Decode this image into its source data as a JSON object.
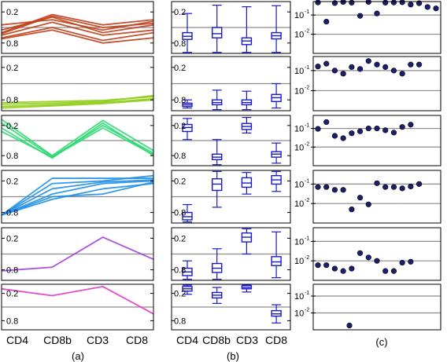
{
  "figure": {
    "x_categories": [
      "CD4",
      "CD8b",
      "CD3",
      "CD8"
    ],
    "panel_labels": [
      "(a)",
      "(b)",
      "(c)"
    ],
    "linear_ticks": [
      "0.8",
      "0.2"
    ],
    "log_ticks": [
      "10",
      "-1",
      "10",
      "-2"
    ]
  },
  "chart_data": [
    {
      "panel": "(a)",
      "type": "line",
      "categories": [
        "CD4",
        "CD8b",
        "CD3",
        "CD8"
      ],
      "ylim": [
        0,
        1
      ],
      "yticks": [
        0.2,
        0.8
      ],
      "reference_line": 0.5,
      "rows": [
        {
          "color": "#c0401c",
          "series": [
            {
              "values": [
                0.45,
                0.7,
                0.4,
                0.55
              ]
            },
            {
              "values": [
                0.4,
                0.75,
                0.55,
                0.65
              ]
            },
            {
              "values": [
                0.35,
                0.6,
                0.35,
                0.45
              ]
            },
            {
              "values": [
                0.3,
                0.5,
                0.25,
                0.4
              ]
            },
            {
              "values": [
                0.55,
                0.65,
                0.45,
                0.62
              ]
            },
            {
              "values": [
                0.28,
                0.45,
                0.2,
                0.3
              ]
            },
            {
              "values": [
                0.38,
                0.72,
                0.5,
                0.58
              ]
            }
          ]
        },
        {
          "color": "#8fcc16",
          "series": [
            {
              "values": [
                0.12,
                0.14,
                0.17,
                0.28
              ]
            },
            {
              "values": [
                0.08,
                0.11,
                0.15,
                0.22
              ]
            },
            {
              "values": [
                0.15,
                0.17,
                0.19,
                0.26
              ]
            },
            {
              "values": [
                0.05,
                0.09,
                0.13,
                0.2
              ]
            }
          ]
        },
        {
          "color": "#2fd872",
          "series": [
            {
              "values": [
                0.85,
                0.18,
                0.8,
                0.25
              ]
            },
            {
              "values": [
                0.75,
                0.15,
                0.85,
                0.2
              ]
            },
            {
              "values": [
                0.68,
                0.17,
                0.75,
                0.22
              ]
            },
            {
              "values": [
                0.92,
                0.2,
                0.9,
                0.3
              ]
            }
          ]
        },
        {
          "color": "#1f8fe8",
          "series": [
            {
              "values": [
                0.15,
                0.85,
                0.85,
                0.85
              ]
            },
            {
              "values": [
                0.15,
                0.75,
                0.8,
                0.9
              ]
            },
            {
              "values": [
                0.15,
                0.65,
                0.78,
                0.82
              ]
            },
            {
              "values": [
                0.15,
                0.55,
                0.75,
                0.8
              ]
            },
            {
              "values": [
                0.15,
                0.5,
                0.55,
                0.78
              ]
            },
            {
              "values": [
                0.15,
                0.45,
                0.65,
                0.75
              ]
            }
          ]
        },
        {
          "color": "#a23fd8",
          "series": [
            {
              "values": [
                0.18,
                0.25,
                0.82,
                0.4
              ]
            }
          ]
        },
        {
          "color": "#e436c4",
          "series": [
            {
              "values": [
                0.9,
                0.75,
                0.95,
                0.35
              ]
            }
          ]
        }
      ]
    },
    {
      "panel": "(b)",
      "type": "box",
      "categories": [
        "CD4",
        "CD8b",
        "CD3",
        "CD8"
      ],
      "ylim": [
        0,
        1
      ],
      "yticks": [
        0.2,
        0.8
      ],
      "reference_line": 0.5,
      "color": "#1a1acc",
      "rows": [
        {
          "boxes": [
            {
              "min": 0.02,
              "q1": 0.27,
              "median": 0.33,
              "q3": 0.4,
              "max": 0.77
            },
            {
              "min": 0.02,
              "q1": 0.3,
              "median": 0.38,
              "q3": 0.5,
              "max": 0.93
            },
            {
              "min": 0.02,
              "q1": 0.17,
              "median": 0.24,
              "q3": 0.3,
              "max": 0.9
            },
            {
              "min": 0.02,
              "q1": 0.28,
              "median": 0.34,
              "q3": 0.4,
              "max": 0.92
            }
          ]
        },
        {
          "boxes": [
            {
              "min": 0.05,
              "q1": 0.08,
              "median": 0.11,
              "q3": 0.14,
              "max": 0.2
            },
            {
              "min": 0.02,
              "q1": 0.11,
              "median": 0.15,
              "q3": 0.2,
              "max": 0.38
            },
            {
              "min": 0.02,
              "q1": 0.11,
              "median": 0.15,
              "q3": 0.2,
              "max": 0.36
            },
            {
              "min": 0.05,
              "q1": 0.17,
              "median": 0.24,
              "q3": 0.3,
              "max": 0.5
            }
          ]
        },
        {
          "boxes": [
            {
              "min": 0.52,
              "q1": 0.68,
              "median": 0.76,
              "q3": 0.82,
              "max": 0.94
            },
            {
              "min": 0.02,
              "q1": 0.12,
              "median": 0.17,
              "q3": 0.23,
              "max": 0.52
            },
            {
              "min": 0.65,
              "q1": 0.72,
              "median": 0.78,
              "q3": 0.84,
              "max": 0.96
            },
            {
              "min": 0.05,
              "q1": 0.17,
              "median": 0.23,
              "q3": 0.28,
              "max": 0.45
            }
          ]
        },
        {
          "boxes": [
            {
              "min": 0.02,
              "q1": 0.06,
              "median": 0.12,
              "q3": 0.2,
              "max": 0.35
            },
            {
              "min": 0.3,
              "q1": 0.62,
              "median": 0.74,
              "q3": 0.84,
              "max": 0.98
            },
            {
              "min": 0.55,
              "q1": 0.68,
              "median": 0.76,
              "q3": 0.86,
              "max": 0.96
            },
            {
              "min": 0.6,
              "q1": 0.74,
              "median": 0.82,
              "q3": 0.9,
              "max": 0.98
            }
          ]
        },
        {
          "boxes": [
            {
              "min": 0.02,
              "q1": 0.09,
              "median": 0.16,
              "q3": 0.23,
              "max": 0.37
            },
            {
              "min": 0.02,
              "q1": 0.15,
              "median": 0.23,
              "q3": 0.32,
              "max": 0.6
            },
            {
              "min": 0.5,
              "q1": 0.73,
              "median": 0.82,
              "q3": 0.9,
              "max": 0.98
            },
            {
              "min": 0.05,
              "q1": 0.28,
              "median": 0.35,
              "q3": 0.45,
              "max": 0.92
            }
          ]
        },
        {
          "boxes": [
            {
              "min": 0.78,
              "q1": 0.85,
              "median": 0.9,
              "q3": 0.95,
              "max": 0.98
            },
            {
              "min": 0.58,
              "q1": 0.7,
              "median": 0.76,
              "q3": 0.82,
              "max": 0.93
            },
            {
              "min": 0.83,
              "q1": 0.9,
              "median": 0.93,
              "q3": 0.97,
              "max": 0.99
            },
            {
              "min": 0.15,
              "q1": 0.3,
              "median": 0.35,
              "q3": 0.42,
              "max": 0.55
            }
          ]
        }
      ]
    },
    {
      "panel": "(c)",
      "type": "scatter",
      "y_scale": "log",
      "ylim": [
        0.001,
        0.5
      ],
      "yticks": [
        0.1,
        0.01
      ],
      "reference_lines": [
        0.1,
        0.01
      ],
      "marker_color": "#1c1f6e",
      "rows": [
        {
          "y": [
            0.45,
            0.045,
            0.42,
            0.48,
            0.44,
            0.09,
            0.48,
            0.12,
            0.44,
            0.45,
            0.46,
            0.35,
            0.41,
            0.26,
            0.22
          ]
        },
        {
          "y": [
            0.16,
            0.22,
            0.1,
            0.07,
            0.15,
            0.12,
            0.3,
            0.2,
            0.15,
            0.1,
            0.07,
            0.2,
            0.2
          ]
        },
        {
          "y": [
            0.095,
            0.22,
            0.04,
            0.03,
            0.055,
            0.07,
            0.1,
            0.1,
            0.08,
            0.06,
            0.12,
            0.16
          ]
        },
        {
          "y": [
            0.07,
            0.07,
            0.05,
            0.05,
            0.005,
            0.02,
            0.009,
            0.11,
            0.07,
            0.07,
            0.06,
            0.075,
            0.1
          ]
        },
        {
          "y": [
            0.006,
            0.006,
            0.004,
            0.003,
            0.004,
            0.025,
            0.015,
            0.01,
            0.003,
            0.003,
            0.008,
            0.009
          ]
        },
        {
          "y": [
            0.0018
          ]
        }
      ]
    }
  ]
}
